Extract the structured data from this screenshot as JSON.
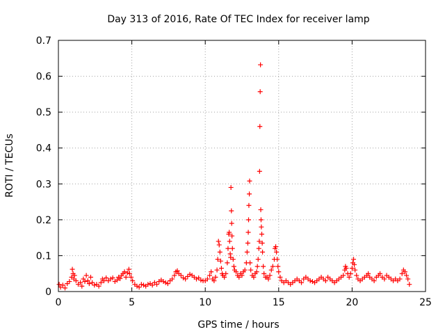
{
  "chart_data": {
    "type": "scatter",
    "title": "Day 313 of 2016, Rate Of TEC Index for receiver lamp",
    "xlabel": "GPS time / hours",
    "ylabel": "ROTI / TECUs",
    "xlim": [
      0,
      25
    ],
    "ylim": [
      0,
      0.7
    ],
    "xticks": [
      0,
      5,
      10,
      15,
      20,
      25
    ],
    "xtick_labels": [
      "0",
      "5",
      "10",
      "15",
      "20",
      "25"
    ],
    "yticks": [
      0,
      0.1,
      0.2,
      0.3,
      0.4,
      0.5,
      0.6,
      0.7
    ],
    "ytick_labels": [
      "0",
      "0.1",
      "0.2",
      "0.3",
      "0.4",
      "0.5",
      "0.6",
      "0.7"
    ],
    "grid": true,
    "marker": "plus",
    "color": "#ff0000",
    "series": [
      {
        "name": "ROTI",
        "points": [
          [
            0.05,
            0.02
          ],
          [
            0.15,
            0.012
          ],
          [
            0.3,
            0.018
          ],
          [
            0.45,
            0.01
          ],
          [
            0.6,
            0.022
          ],
          [
            0.75,
            0.028
          ],
          [
            0.9,
            0.04
          ],
          [
            0.95,
            0.062
          ],
          [
            1.0,
            0.05
          ],
          [
            1.05,
            0.035
          ],
          [
            1.1,
            0.045
          ],
          [
            1.2,
            0.03
          ],
          [
            1.35,
            0.02
          ],
          [
            1.5,
            0.025
          ],
          [
            1.6,
            0.015
          ],
          [
            1.7,
            0.035
          ],
          [
            1.8,
            0.028
          ],
          [
            1.9,
            0.045
          ],
          [
            2.0,
            0.03
          ],
          [
            2.1,
            0.022
          ],
          [
            2.2,
            0.04
          ],
          [
            2.3,
            0.025
          ],
          [
            2.45,
            0.018
          ],
          [
            2.6,
            0.02
          ],
          [
            2.75,
            0.015
          ],
          [
            2.9,
            0.025
          ],
          [
            3.0,
            0.035
          ],
          [
            3.1,
            0.03
          ],
          [
            3.25,
            0.038
          ],
          [
            3.4,
            0.03
          ],
          [
            3.55,
            0.035
          ],
          [
            3.7,
            0.038
          ],
          [
            3.85,
            0.028
          ],
          [
            4.0,
            0.032
          ],
          [
            4.1,
            0.04
          ],
          [
            4.2,
            0.036
          ],
          [
            4.3,
            0.045
          ],
          [
            4.4,
            0.05
          ],
          [
            4.5,
            0.055
          ],
          [
            4.6,
            0.04
          ],
          [
            4.7,
            0.052
          ],
          [
            4.8,
            0.062
          ],
          [
            4.85,
            0.05
          ],
          [
            4.95,
            0.04
          ],
          [
            5.05,
            0.03
          ],
          [
            5.2,
            0.02
          ],
          [
            5.35,
            0.015
          ],
          [
            5.5,
            0.012
          ],
          [
            5.65,
            0.02
          ],
          [
            5.8,
            0.018
          ],
          [
            5.95,
            0.015
          ],
          [
            6.1,
            0.02
          ],
          [
            6.25,
            0.022
          ],
          [
            6.4,
            0.018
          ],
          [
            6.55,
            0.025
          ],
          [
            6.7,
            0.02
          ],
          [
            6.85,
            0.028
          ],
          [
            7.0,
            0.032
          ],
          [
            7.15,
            0.028
          ],
          [
            7.3,
            0.025
          ],
          [
            7.45,
            0.022
          ],
          [
            7.6,
            0.03
          ],
          [
            7.75,
            0.035
          ],
          [
            7.9,
            0.045
          ],
          [
            8.0,
            0.055
          ],
          [
            8.1,
            0.058
          ],
          [
            8.2,
            0.05
          ],
          [
            8.35,
            0.045
          ],
          [
            8.5,
            0.038
          ],
          [
            8.65,
            0.035
          ],
          [
            8.8,
            0.042
          ],
          [
            8.95,
            0.048
          ],
          [
            9.1,
            0.045
          ],
          [
            9.25,
            0.04
          ],
          [
            9.4,
            0.035
          ],
          [
            9.55,
            0.038
          ],
          [
            9.7,
            0.032
          ],
          [
            9.85,
            0.03
          ],
          [
            10.0,
            0.03
          ],
          [
            10.15,
            0.035
          ],
          [
            10.3,
            0.045
          ],
          [
            10.4,
            0.055
          ],
          [
            10.5,
            0.035
          ],
          [
            10.6,
            0.03
          ],
          [
            10.7,
            0.04
          ],
          [
            10.8,
            0.06
          ],
          [
            10.85,
            0.09
          ],
          [
            10.9,
            0.14
          ],
          [
            10.95,
            0.13
          ],
          [
            11.0,
            0.11
          ],
          [
            11.05,
            0.085
          ],
          [
            11.1,
            0.065
          ],
          [
            11.15,
            0.05
          ],
          [
            11.2,
            0.045
          ],
          [
            11.3,
            0.04
          ],
          [
            11.4,
            0.05
          ],
          [
            11.5,
            0.08
          ],
          [
            11.55,
            0.12
          ],
          [
            11.6,
            0.16
          ],
          [
            11.63,
            0.165
          ],
          [
            11.66,
            0.14
          ],
          [
            11.7,
            0.105
          ],
          [
            11.73,
            0.095
          ],
          [
            11.75,
            0.29
          ],
          [
            11.78,
            0.225
          ],
          [
            11.8,
            0.19
          ],
          [
            11.82,
            0.155
          ],
          [
            11.85,
            0.12
          ],
          [
            11.9,
            0.09
          ],
          [
            11.95,
            0.07
          ],
          [
            12.0,
            0.06
          ],
          [
            12.1,
            0.055
          ],
          [
            12.2,
            0.045
          ],
          [
            12.3,
            0.04
          ],
          [
            12.4,
            0.05
          ],
          [
            12.5,
            0.045
          ],
          [
            12.6,
            0.055
          ],
          [
            12.7,
            0.06
          ],
          [
            12.8,
            0.08
          ],
          [
            12.85,
            0.11
          ],
          [
            12.9,
            0.135
          ],
          [
            12.93,
            0.165
          ],
          [
            12.95,
            0.2
          ],
          [
            12.97,
            0.24
          ],
          [
            13.0,
            0.272
          ],
          [
            13.02,
            0.308
          ],
          [
            13.05,
            0.08
          ],
          [
            13.1,
            0.06
          ],
          [
            13.2,
            0.045
          ],
          [
            13.3,
            0.04
          ],
          [
            13.4,
            0.05
          ],
          [
            13.5,
            0.055
          ],
          [
            13.55,
            0.07
          ],
          [
            13.6,
            0.09
          ],
          [
            13.65,
            0.12
          ],
          [
            13.68,
            0.14
          ],
          [
            13.7,
            0.335
          ],
          [
            13.72,
            0.46
          ],
          [
            13.74,
            0.557
          ],
          [
            13.76,
            0.632
          ],
          [
            13.78,
            0.228
          ],
          [
            13.8,
            0.2
          ],
          [
            13.82,
            0.18
          ],
          [
            13.85,
            0.16
          ],
          [
            13.88,
            0.135
          ],
          [
            13.9,
            0.11
          ],
          [
            13.95,
            0.07
          ],
          [
            14.0,
            0.05
          ],
          [
            14.1,
            0.04
          ],
          [
            14.2,
            0.04
          ],
          [
            14.3,
            0.035
          ],
          [
            14.4,
            0.045
          ],
          [
            14.5,
            0.06
          ],
          [
            14.6,
            0.07
          ],
          [
            14.7,
            0.09
          ],
          [
            14.75,
            0.12
          ],
          [
            14.8,
            0.125
          ],
          [
            14.85,
            0.11
          ],
          [
            14.9,
            0.09
          ],
          [
            14.95,
            0.07
          ],
          [
            15.0,
            0.055
          ],
          [
            15.1,
            0.04
          ],
          [
            15.2,
            0.03
          ],
          [
            15.35,
            0.025
          ],
          [
            15.5,
            0.03
          ],
          [
            15.65,
            0.025
          ],
          [
            15.8,
            0.02
          ],
          [
            15.95,
            0.025
          ],
          [
            16.1,
            0.03
          ],
          [
            16.25,
            0.035
          ],
          [
            16.4,
            0.03
          ],
          [
            16.55,
            0.025
          ],
          [
            16.7,
            0.035
          ],
          [
            16.85,
            0.04
          ],
          [
            17.0,
            0.035
          ],
          [
            17.15,
            0.03
          ],
          [
            17.3,
            0.028
          ],
          [
            17.45,
            0.025
          ],
          [
            17.6,
            0.03
          ],
          [
            17.75,
            0.035
          ],
          [
            17.9,
            0.04
          ],
          [
            18.05,
            0.035
          ],
          [
            18.2,
            0.03
          ],
          [
            18.35,
            0.04
          ],
          [
            18.5,
            0.035
          ],
          [
            18.65,
            0.03
          ],
          [
            18.8,
            0.025
          ],
          [
            18.95,
            0.03
          ],
          [
            19.1,
            0.035
          ],
          [
            19.25,
            0.04
          ],
          [
            19.4,
            0.045
          ],
          [
            19.5,
            0.06
          ],
          [
            19.55,
            0.07
          ],
          [
            19.6,
            0.065
          ],
          [
            19.7,
            0.05
          ],
          [
            19.8,
            0.04
          ],
          [
            19.9,
            0.05
          ],
          [
            20.0,
            0.065
          ],
          [
            20.05,
            0.08
          ],
          [
            20.1,
            0.09
          ],
          [
            20.15,
            0.075
          ],
          [
            20.2,
            0.06
          ],
          [
            20.3,
            0.045
          ],
          [
            20.4,
            0.035
          ],
          [
            20.55,
            0.03
          ],
          [
            20.7,
            0.035
          ],
          [
            20.85,
            0.04
          ],
          [
            21.0,
            0.045
          ],
          [
            21.1,
            0.05
          ],
          [
            21.2,
            0.04
          ],
          [
            21.35,
            0.035
          ],
          [
            21.5,
            0.03
          ],
          [
            21.65,
            0.04
          ],
          [
            21.8,
            0.045
          ],
          [
            21.9,
            0.05
          ],
          [
            22.05,
            0.04
          ],
          [
            22.2,
            0.035
          ],
          [
            22.35,
            0.045
          ],
          [
            22.5,
            0.04
          ],
          [
            22.65,
            0.035
          ],
          [
            22.8,
            0.03
          ],
          [
            22.95,
            0.035
          ],
          [
            23.1,
            0.03
          ],
          [
            23.25,
            0.035
          ],
          [
            23.4,
            0.05
          ],
          [
            23.5,
            0.06
          ],
          [
            23.6,
            0.055
          ],
          [
            23.7,
            0.045
          ],
          [
            23.8,
            0.035
          ],
          [
            23.9,
            0.02
          ]
        ]
      }
    ]
  }
}
